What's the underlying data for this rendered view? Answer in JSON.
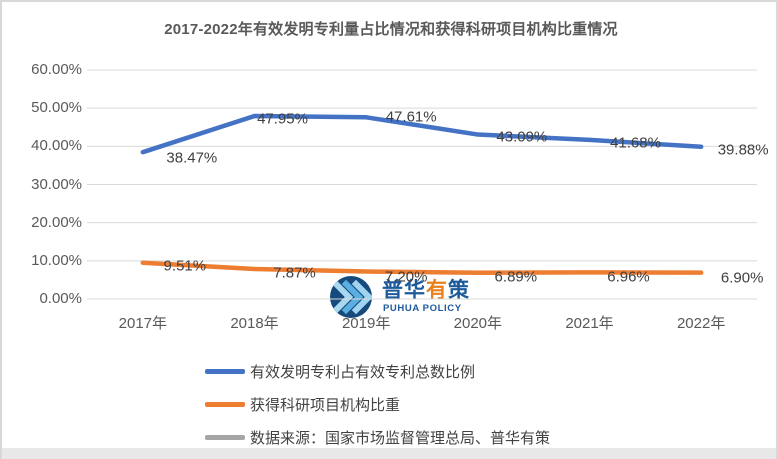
{
  "title": "2017-2022年有效发明专利量占比情况和获得科研项目机构比重情况",
  "chart_data": {
    "type": "line",
    "categories": [
      "2017年",
      "2018年",
      "2019年",
      "2020年",
      "2021年",
      "2022年"
    ],
    "series": [
      {
        "name": "有效发明专利占有效专利总数比例",
        "color": "#4472C4",
        "values": [
          38.47,
          47.95,
          47.61,
          43.09,
          41.68,
          39.88
        ]
      },
      {
        "name": "获得科研项目机构比重",
        "color": "#ED7D31",
        "values": [
          9.51,
          7.87,
          7.2,
          6.89,
          6.96,
          6.9
        ]
      }
    ],
    "ylim": [
      0,
      60
    ],
    "ytick_step": 10,
    "ytick_labels": [
      "60.00%",
      "50.00%",
      "40.00%",
      "30.00%",
      "20.00%",
      "10.00%",
      "0.00%"
    ],
    "grid": true,
    "gridline_color": "#D9D9D9",
    "data_labels": true,
    "legend_position": "bottom"
  },
  "legend": {
    "items": [
      {
        "label": "有效发明专利占有效专利总数比例",
        "color": "#4472C4"
      },
      {
        "label": "获得科研项目机构比重",
        "color": "#ED7D31"
      },
      {
        "label": "数据来源：国家市场监督管理总局、普华有策",
        "color": "#A6A6A6"
      }
    ]
  },
  "watermark": {
    "cn_chars": [
      {
        "char": "普",
        "color": "#1D5A9B"
      },
      {
        "char": "华",
        "color": "#1D5A9B"
      },
      {
        "char": "有",
        "color": "#E8811C"
      },
      {
        "char": "策",
        "color": "#1D5A9B"
      }
    ],
    "en": "PUHUA POLICY",
    "circle_color": "#174A7C",
    "chevron_colors": [
      "#A8D8F0",
      "#5AAEE0",
      "#9FD4F0"
    ]
  },
  "colors": {
    "title_text": "#595959",
    "axis_text": "#595959",
    "data_label_text": "#404040",
    "border": "#D8D8D8",
    "bottom_strip": "#E8E8E8"
  }
}
